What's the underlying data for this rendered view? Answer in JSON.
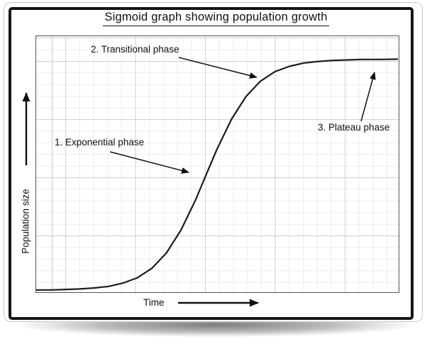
{
  "title": "Sigmoid graph showing population growth",
  "axes": {
    "x_label": "Time",
    "y_label": "Population size"
  },
  "annotations": [
    {
      "label": "1. Exponential phase",
      "points_to": "lower bend of the sigmoid curve"
    },
    {
      "label": "2. Transitional phase",
      "points_to": "upper bend of the sigmoid curve"
    },
    {
      "label": "3. Plateau phase",
      "points_to": "flat top of the sigmoid curve"
    }
  ],
  "colors": {
    "ink": "#111111",
    "curve": "#1c1c1c",
    "grid_minor": "#ececec",
    "grid_major": "#d2d2d2",
    "plot_border": "#555555",
    "frame": "#161616",
    "background": "#ffffff"
  },
  "chart_data": {
    "type": "line",
    "title": "Sigmoid graph showing population growth",
    "xlabel": "Time",
    "ylabel": "Population size",
    "x_range": [
      0,
      100
    ],
    "y_range": [
      0,
      100
    ],
    "grid": "on",
    "legend": "none",
    "axis_tick_labels": "none",
    "series": [
      {
        "name": "Population size (sigmoid growth)",
        "points": [
          [
            0,
            0.6
          ],
          [
            4,
            0.6
          ],
          [
            8,
            0.8
          ],
          [
            12,
            1.0
          ],
          [
            16,
            1.4
          ],
          [
            20,
            2.0
          ],
          [
            24,
            3.3
          ],
          [
            28,
            5.4
          ],
          [
            32,
            9.1
          ],
          [
            36,
            15.1
          ],
          [
            40,
            24.0
          ],
          [
            44,
            35.7
          ],
          [
            47,
            45.8
          ],
          [
            50,
            55.8
          ],
          [
            54,
            67.5
          ],
          [
            58,
            76.4
          ],
          [
            62,
            82.4
          ],
          [
            66,
            86.1
          ],
          [
            70,
            88.2
          ],
          [
            74,
            89.5
          ],
          [
            78,
            90.1
          ],
          [
            82,
            90.5
          ],
          [
            86,
            90.7
          ],
          [
            90,
            90.9
          ],
          [
            95,
            90.9
          ],
          [
            100,
            91.0
          ]
        ]
      }
    ],
    "annotations": [
      {
        "text": "1. Exponential phase",
        "at_x": 43
      },
      {
        "text": "2. Transitional phase",
        "at_x": 62
      },
      {
        "text": "3. Plateau phase",
        "at_x": 94
      }
    ]
  }
}
